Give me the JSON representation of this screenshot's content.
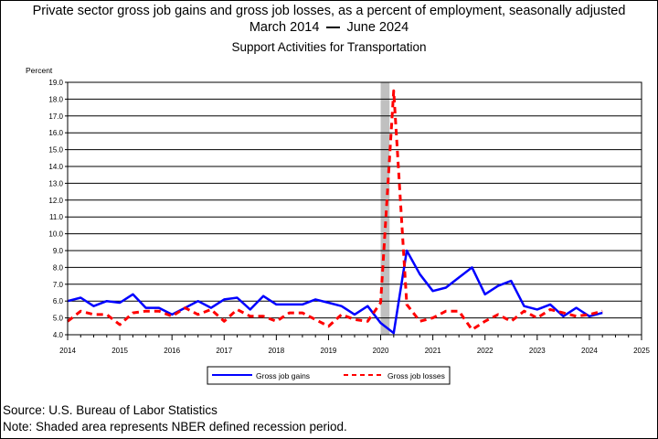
{
  "titles": {
    "line1": "Private sector gross job gains and gross job losses, as a percent of employment, seasonally adjusted",
    "line2_start": "March 2014",
    "line2_end": "June 2024",
    "line3": "Support Activities for Transportation"
  },
  "footnotes": {
    "source": "Source: U.S. Bureau of Labor Statistics",
    "note": "Note: Shaded area represents NBER defined recession period."
  },
  "colors": {
    "gains": "#0000ff",
    "losses": "#ff0000",
    "recession": "#c0c0c0"
  },
  "chart_data": {
    "type": "line",
    "ylabel": "Percent",
    "ylim": [
      4.0,
      19.0
    ],
    "y_ticks": [
      "4.0",
      "5.0",
      "6.0",
      "7.0",
      "8.0",
      "9.0",
      "10.0",
      "11.0",
      "12.0",
      "13.0",
      "14.0",
      "15.0",
      "16.0",
      "17.0",
      "18.0",
      "19.0"
    ],
    "xlim": [
      2014,
      2025
    ],
    "x_ticks": [
      "2014",
      "2015",
      "2016",
      "2017",
      "2018",
      "2019",
      "2020",
      "2021",
      "2022",
      "2023",
      "2024",
      "2025"
    ],
    "grid": "horizontal",
    "recession": {
      "start": 2020.0,
      "end": 2020.17
    },
    "x": [
      2014.0,
      2014.25,
      2014.5,
      2014.75,
      2015.0,
      2015.25,
      2015.5,
      2015.75,
      2016.0,
      2016.25,
      2016.5,
      2016.75,
      2017.0,
      2017.25,
      2017.5,
      2017.75,
      2018.0,
      2018.25,
      2018.5,
      2018.75,
      2019.0,
      2019.25,
      2019.5,
      2019.75,
      2020.0,
      2020.25,
      2020.5,
      2020.75,
      2021.0,
      2021.25,
      2021.5,
      2021.75,
      2022.0,
      2022.25,
      2022.5,
      2022.75,
      2023.0,
      2023.25,
      2023.5,
      2023.75,
      2024.0,
      2024.25
    ],
    "series": [
      {
        "name": "Gross job gains",
        "style": "solid",
        "values": [
          6.0,
          6.2,
          5.7,
          6.0,
          5.9,
          6.4,
          5.6,
          5.6,
          5.2,
          5.6,
          6.0,
          5.6,
          6.1,
          6.2,
          5.5,
          6.3,
          5.8,
          5.8,
          5.8,
          6.1,
          5.9,
          5.7,
          5.2,
          5.7,
          4.7,
          4.1,
          9.0,
          7.6,
          6.6,
          6.8,
          7.4,
          8.0,
          6.4,
          6.9,
          7.2,
          5.7,
          5.5,
          5.8,
          5.1,
          5.6,
          5.1,
          5.3
        ]
      },
      {
        "name": "Gross job losses",
        "style": "dashed",
        "values": [
          4.8,
          5.4,
          5.2,
          5.2,
          4.6,
          5.3,
          5.4,
          5.4,
          5.1,
          5.6,
          5.2,
          5.5,
          4.8,
          5.5,
          5.1,
          5.1,
          4.8,
          5.3,
          5.3,
          4.9,
          4.5,
          5.2,
          4.9,
          4.8,
          5.9,
          18.5,
          5.8,
          4.8,
          5.0,
          5.4,
          5.4,
          4.3,
          4.8,
          5.2,
          4.8,
          5.4,
          5.0,
          5.5,
          5.3,
          5.1,
          5.2,
          5.4
        ]
      }
    ],
    "legend": "bottom-center"
  }
}
